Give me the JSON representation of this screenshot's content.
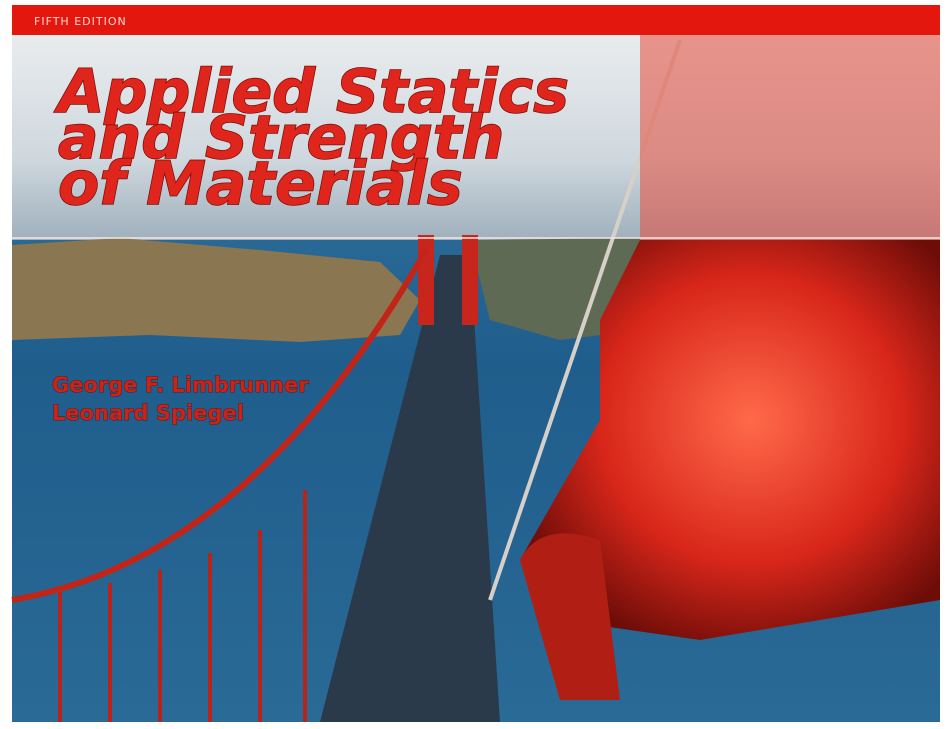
{
  "cover": {
    "edition": "FIFTH EDITION",
    "title_lines": [
      "Applied Statics",
      "and Strength",
      "of Materials"
    ],
    "authors": [
      "George F. Limbrunner",
      "Leonard Spiegel"
    ]
  }
}
